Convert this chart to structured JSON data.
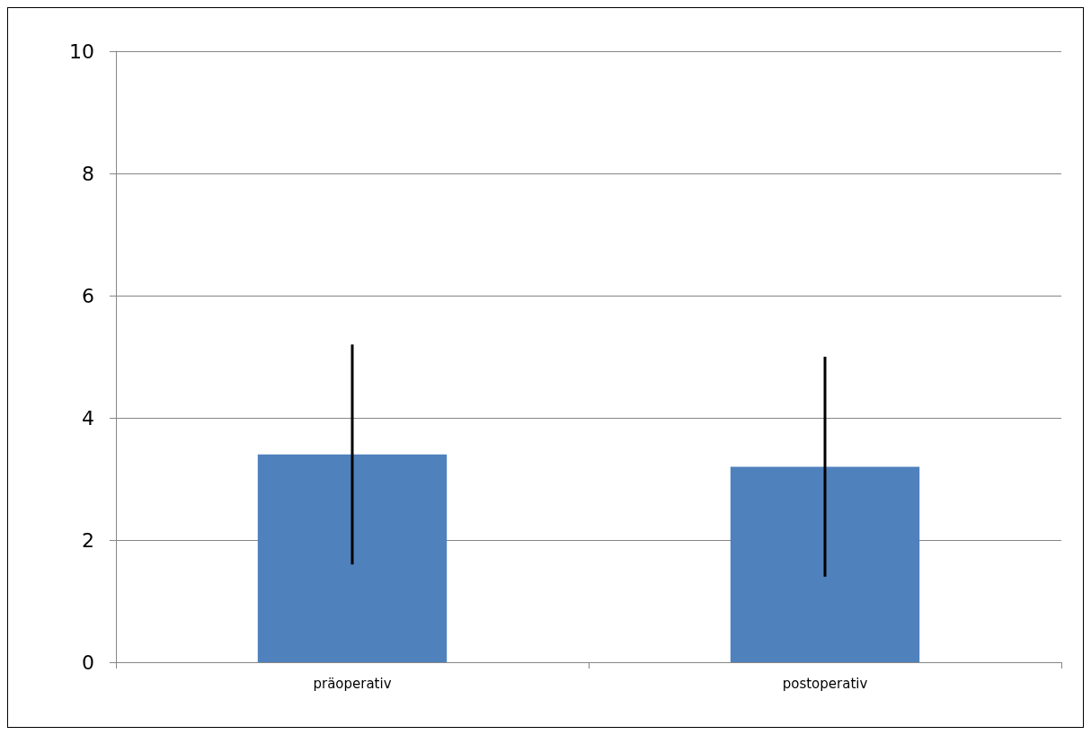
{
  "chart_data": {
    "type": "bar",
    "categories": [
      "präoperativ",
      "postoperativ"
    ],
    "values": [
      3.4,
      3.2
    ],
    "errors": [
      [
        1.6,
        5.2
      ],
      [
        1.4,
        5.0
      ]
    ],
    "color": "#4f81bd",
    "ylim": [
      0,
      10
    ],
    "yticks": [
      0,
      2,
      4,
      6,
      8,
      10
    ],
    "grid": "y"
  }
}
